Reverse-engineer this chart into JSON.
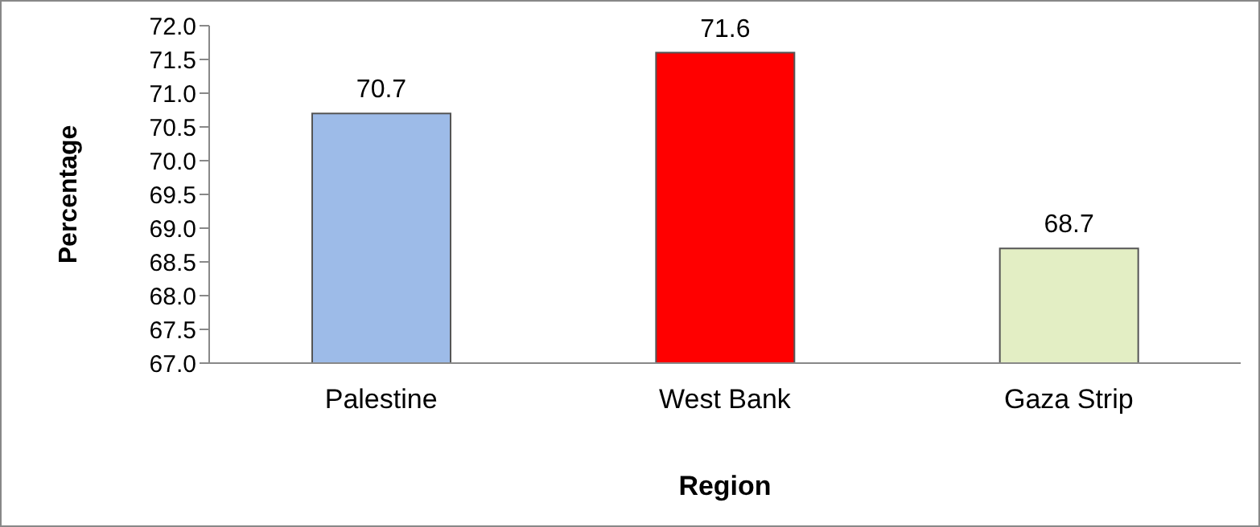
{
  "chart_data": {
    "type": "bar",
    "xlabel": "Region",
    "ylabel": "Percentage",
    "categories": [
      "Palestine",
      "West Bank",
      "Gaza Strip"
    ],
    "values": [
      70.7,
      71.6,
      68.7
    ],
    "colors": [
      "#9dbbe8",
      "#ff0000",
      "#e3eec4"
    ],
    "ylim": [
      67,
      72
    ],
    "yticks": [
      {
        "value": 67,
        "label": "67.0"
      },
      {
        "value": 67.5,
        "label": "67.5"
      },
      {
        "value": 68,
        "label": "68.0"
      },
      {
        "value": 68.5,
        "label": "68.5"
      },
      {
        "value": 69,
        "label": "69.0"
      },
      {
        "value": 69.5,
        "label": "69.5"
      },
      {
        "value": 70,
        "label": "70.0"
      },
      {
        "value": 70.5,
        "label": "70.5"
      },
      {
        "value": 71,
        "label": "71.0"
      },
      {
        "value": 71.5,
        "label": "71.5"
      },
      {
        "value": 72,
        "label": "72.0"
      }
    ],
    "data_labels": true,
    "grid": false,
    "legend": false
  }
}
